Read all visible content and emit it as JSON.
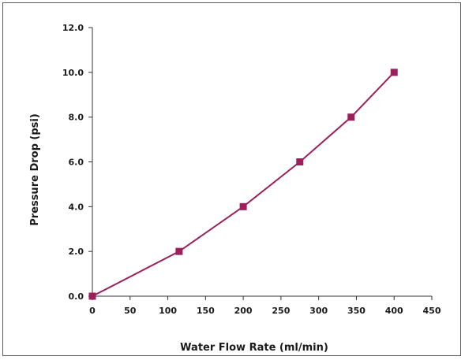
{
  "chart_data": {
    "type": "line",
    "title": "",
    "xlabel": "Water Flow Rate (ml/min)",
    "ylabel": "Pressure Drop (psi)",
    "xlim": [
      0,
      450
    ],
    "ylim": [
      0,
      12
    ],
    "xticks": [
      "0",
      "50",
      "100",
      "150",
      "200",
      "250",
      "300",
      "350",
      "400",
      "450"
    ],
    "xtick_values": [
      0,
      50,
      100,
      150,
      200,
      250,
      300,
      350,
      400,
      450
    ],
    "yticks": [
      "0.0",
      "2.0",
      "4.0",
      "6.0",
      "8.0",
      "10.0",
      "12.0"
    ],
    "ytick_values": [
      0,
      2,
      4,
      6,
      8,
      10,
      12
    ],
    "grid": false,
    "legend": "none",
    "series": [
      {
        "x": [
          0,
          115,
          200,
          275,
          343,
          400
        ],
        "y": [
          0,
          2,
          4,
          6,
          8,
          10
        ],
        "color": "#9c1f5c",
        "marker": "square"
      }
    ]
  }
}
